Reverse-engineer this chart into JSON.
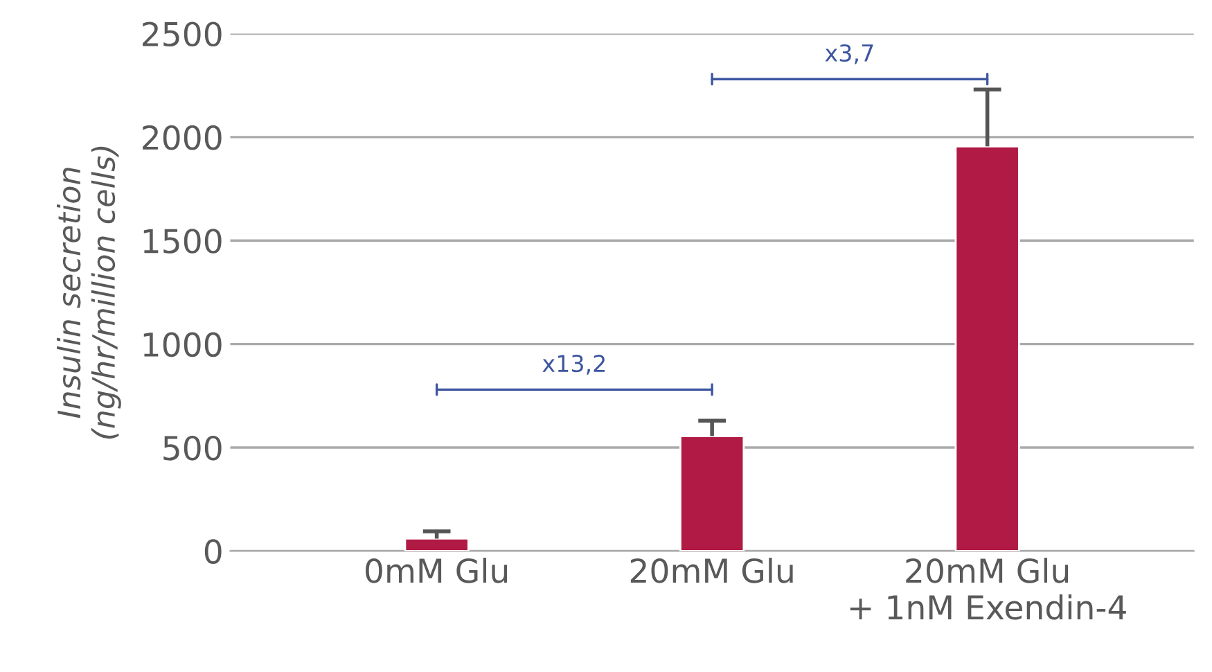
{
  "chart_data": {
    "type": "bar",
    "ylabel": "Insulin secretion\n(ng/hr/million cells)",
    "categories": [
      "0mM Glu",
      "20mM Glu",
      "20mM Glu\n+ 1nM Exendin-4"
    ],
    "values": [
      60,
      555,
      1955
    ],
    "color": "#b01a44",
    "errors": [
      [
        60,
        95
      ],
      [
        555,
        630
      ],
      [
        1955,
        2230
      ]
    ],
    "ylim": [
      0,
      2500
    ],
    "yticks": [
      0,
      500,
      1000,
      1500,
      2000,
      2500
    ],
    "grid": "y",
    "annotations": [
      "x13,2",
      "x3,7"
    ]
  }
}
